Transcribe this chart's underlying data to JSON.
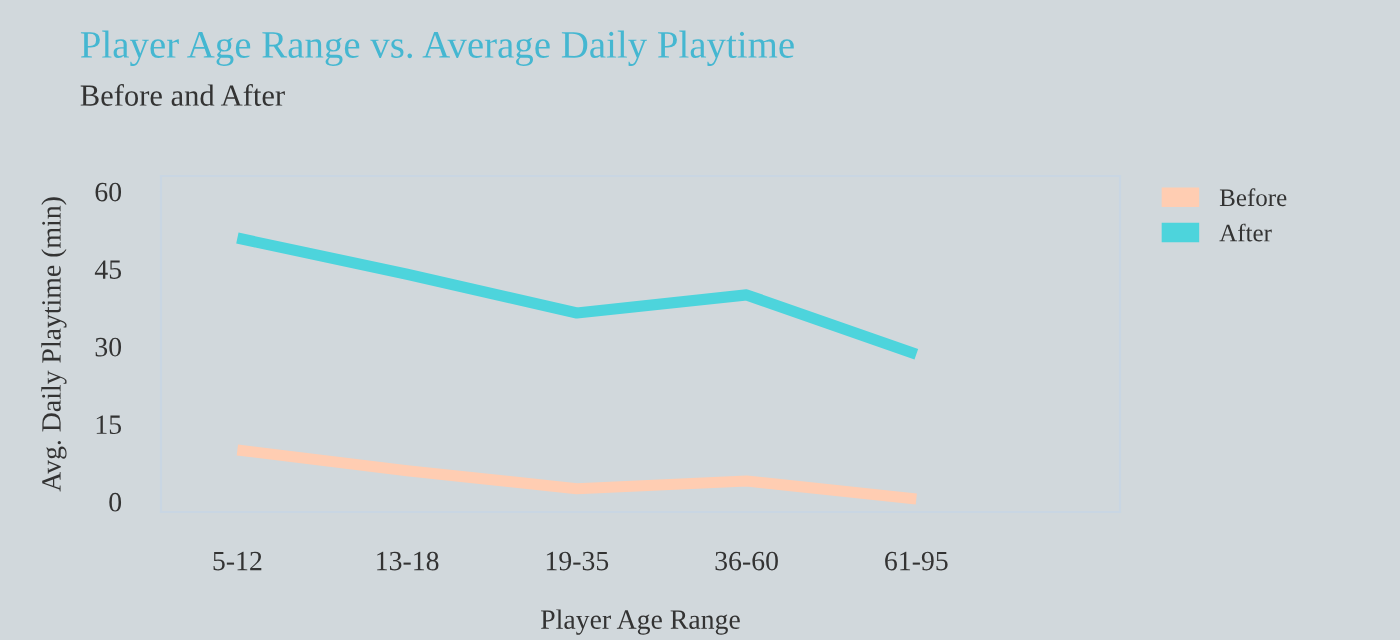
{
  "chart_data": {
    "type": "line",
    "title": "Player Age Range vs. Average Daily Playtime",
    "subtitle": "Before and After",
    "xlabel": "Player Age Range",
    "ylabel": "Avg. Daily Playtime (min)",
    "categories": [
      "5-12",
      "13-18",
      "19-35",
      "36-60",
      "61-95"
    ],
    "series": [
      {
        "name": "Before",
        "color": "#ffcdb2",
        "values": [
          10,
          6,
          2.5,
          4,
          0.5
        ]
      },
      {
        "name": "After",
        "color": "#4dd4dc",
        "values": [
          51,
          44,
          36.5,
          40,
          28.5
        ]
      }
    ],
    "ylim": [
      -2,
      63
    ],
    "yticks": [
      0,
      15,
      30,
      45,
      60
    ],
    "grid": false,
    "legend": "top right",
    "marker": "none",
    "line_style": "solid"
  }
}
